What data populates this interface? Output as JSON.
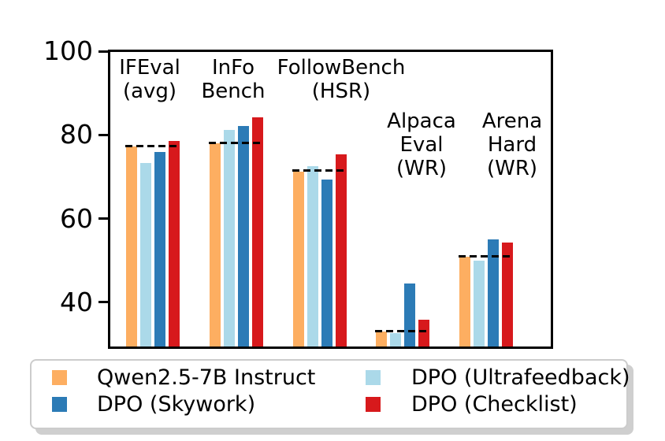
{
  "chart_data": {
    "type": "bar",
    "title": "",
    "xlabel": "",
    "ylabel": "",
    "categories": [
      [
        "IFEval",
        "(avg)"
      ],
      [
        "InFo",
        "Bench"
      ],
      [
        "FollowBench",
        "(HSR)"
      ],
      [
        "Alpaca",
        "Eval",
        "(WR)"
      ],
      [
        "Arena",
        "Hard",
        "(WR)"
      ]
    ],
    "series": [
      {
        "name": "Qwen2.5-7B Instruct",
        "color": "#FDAE61",
        "values": [
          77.2,
          78.0,
          71.2,
          33.0,
          50.8
        ]
      },
      {
        "name": "DPO (Ultrafeedback)",
        "color": "#ABD9E9",
        "values": [
          73.3,
          81.2,
          72.5,
          32.6,
          50.0
        ]
      },
      {
        "name": "DPO (Skywork)",
        "color": "#2C7BB6",
        "values": [
          75.9,
          82.1,
          69.4,
          44.5,
          55.0
        ]
      },
      {
        "name": "DPO (Checklist)",
        "color": "#D7191C",
        "values": [
          78.6,
          84.2,
          75.4,
          35.8,
          54.2
        ]
      }
    ],
    "baselines": {
      "description": "dashed black reference line per category (instruct-model baseline)",
      "values": [
        77.3,
        78.0,
        71.4,
        33.0,
        51.0
      ],
      "style": "dashed-black"
    },
    "yticks": [
      40,
      60,
      80,
      100
    ],
    "ylim": [
      29.4,
      100.4
    ],
    "grid": false,
    "legend": {
      "position": "bottom",
      "columns": 2,
      "entries": [
        {
          "label": "Qwen2.5-7B Instruct",
          "color": "#FDAE61"
        },
        {
          "label": "DPO (Ultrafeedback)",
          "color": "#ABD9E9"
        },
        {
          "label": "DPO (Skywork)",
          "color": "#2C7BB6"
        },
        {
          "label": "DPO (Checklist)",
          "color": "#D7191C"
        }
      ]
    }
  }
}
